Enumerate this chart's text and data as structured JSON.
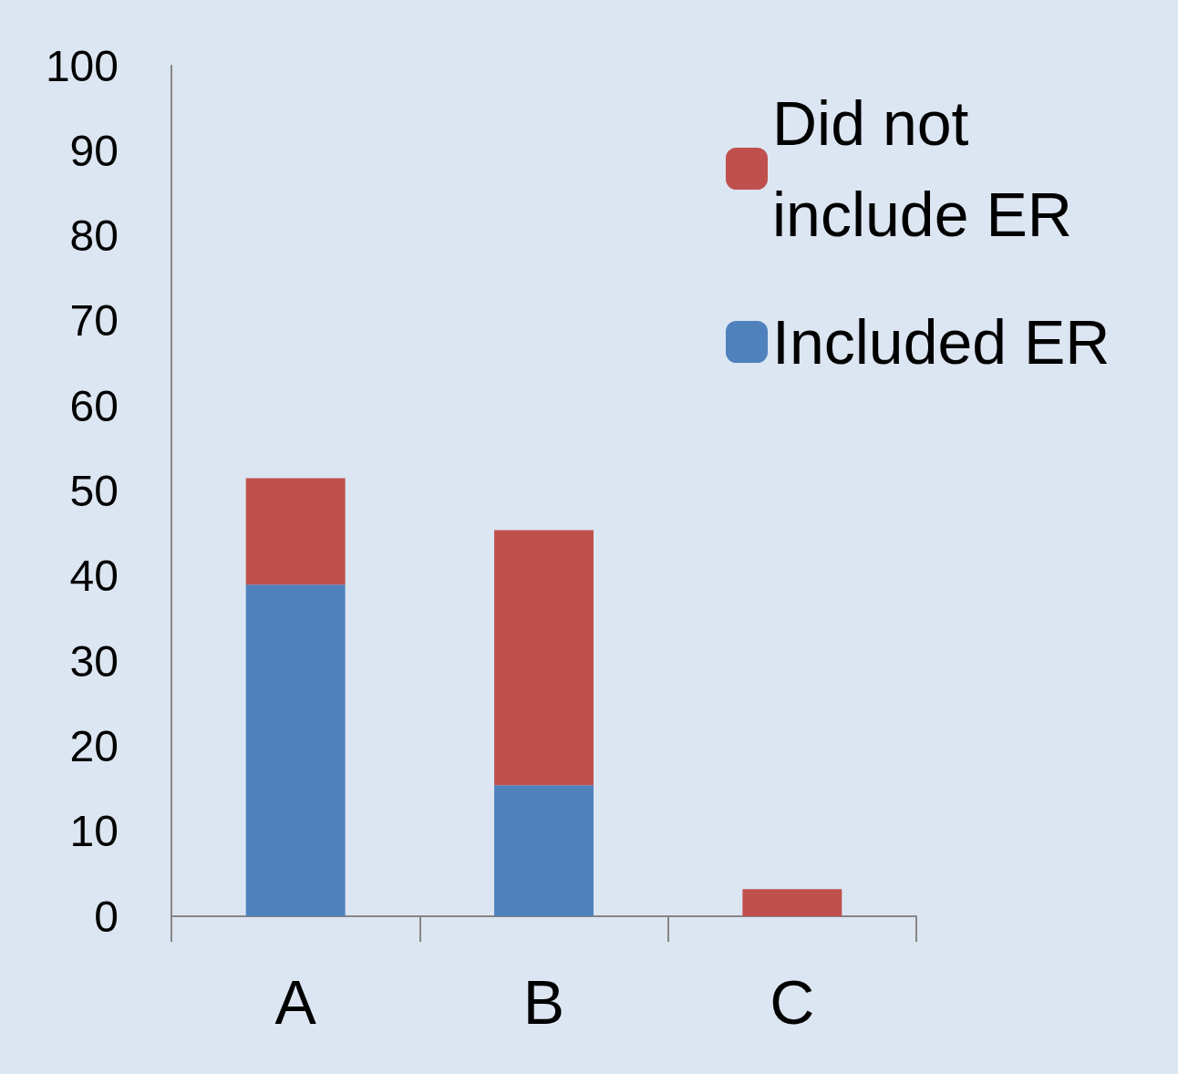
{
  "chart_data": {
    "type": "bar",
    "stacked": true,
    "categories": [
      "A",
      "B",
      "C"
    ],
    "series": [
      {
        "name": "Included ER",
        "color": "#4f81bd",
        "values": [
          39,
          15.4,
          0
        ]
      },
      {
        "name": "Did not include ER",
        "color": "#c0504d",
        "values": [
          12.5,
          30,
          3.2
        ]
      }
    ],
    "ylim": [
      0,
      100
    ],
    "yticks": [
      0,
      10,
      20,
      30,
      40,
      50,
      60,
      70,
      80,
      90,
      100
    ],
    "grid": false,
    "legend": "top right"
  }
}
